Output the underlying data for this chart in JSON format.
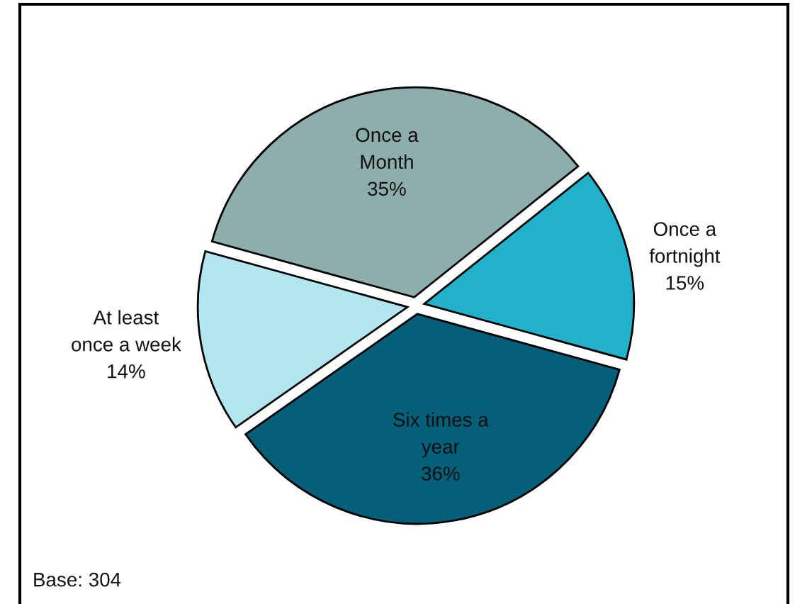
{
  "chart_data": {
    "type": "pie",
    "categories": [
      "Once a Month",
      "Once a fortnight",
      "Six times a year",
      "At least once a week"
    ],
    "values": [
      35,
      15,
      36,
      14
    ],
    "value_labels": [
      "35%",
      "15%",
      "36%",
      "14%"
    ],
    "colors": [
      "#8eaead",
      "#21b1cb",
      "#065f79",
      "#b2e7f1"
    ],
    "annotations": [
      "Base: 304"
    ]
  }
}
